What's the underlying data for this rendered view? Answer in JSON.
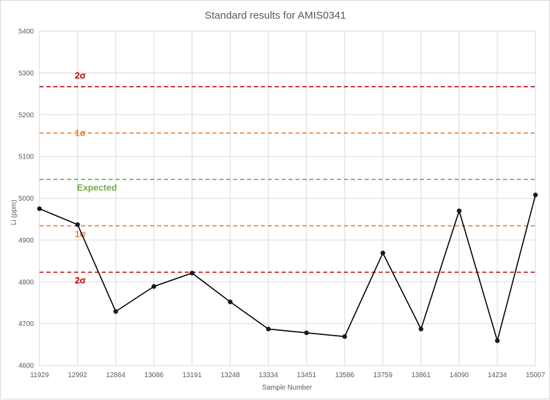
{
  "chart_data": {
    "type": "line",
    "title": "Standard results for AMIS0341",
    "xlabel": "Sample Number",
    "ylabel": "Li (ppm)",
    "ylim": [
      4600,
      5400
    ],
    "yticks": [
      4600,
      4700,
      4800,
      4900,
      5000,
      5100,
      5200,
      5300,
      5400
    ],
    "grid": true,
    "categories": [
      "11929",
      "12992",
      "12864",
      "13086",
      "13191",
      "13248",
      "13334",
      "13451",
      "13586",
      "13759",
      "13861",
      "14090",
      "14234",
      "15007"
    ],
    "series": [
      {
        "values": [
          4975,
          4937,
          4729,
          4789,
          4821,
          4752,
          4687,
          4678,
          4669,
          4869,
          4687,
          4970,
          4659,
          5008
        ],
        "color": "#000000",
        "marker_color": "#0d1b3e"
      }
    ],
    "reference_lines": [
      {
        "label": "2σ",
        "value": 5267,
        "color": "#c00000",
        "label_pos": "above",
        "label_category_index": 1
      },
      {
        "label": "1σ",
        "value": 5156,
        "color": "#ed7d31",
        "label_pos": "on",
        "label_category_index": 1
      },
      {
        "label": "Expected",
        "value": 5045,
        "color": "#70ad47",
        "label_pos": "below",
        "label_category_index": 2
      },
      {
        "label": "1σ",
        "value": 4934,
        "color": "#ed7d31",
        "label_pos": "below",
        "label_category_index": 1
      },
      {
        "label": "2σ",
        "value": 4823,
        "color": "#c00000",
        "label_pos": "below",
        "label_category_index": 1
      }
    ]
  }
}
